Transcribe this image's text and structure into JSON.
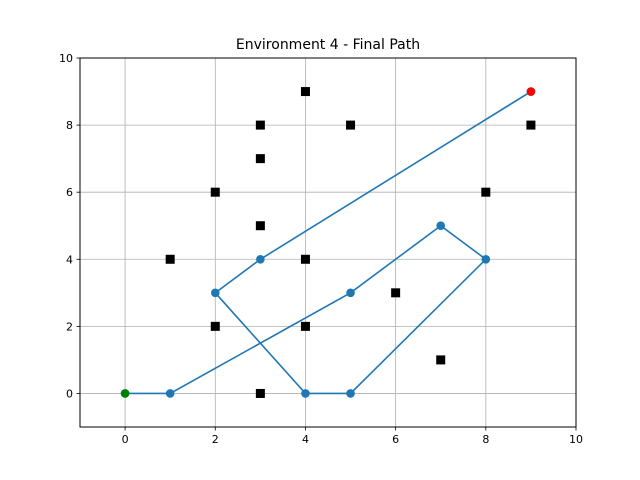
{
  "chart_data": {
    "type": "scatter",
    "title": "Environment 4 - Final Path",
    "xlabel": "",
    "ylabel": "",
    "xlim": [
      -1,
      10
    ],
    "ylim": [
      -1,
      10
    ],
    "x_ticks": [
      0,
      2,
      4,
      6,
      8,
      10
    ],
    "y_ticks": [
      0,
      2,
      4,
      6,
      8,
      10
    ],
    "grid": true,
    "path": {
      "color": "#1f77b4",
      "points": [
        [
          0,
          0
        ],
        [
          1,
          0
        ],
        [
          5,
          3
        ],
        [
          7,
          5
        ],
        [
          8,
          4
        ],
        [
          5,
          0
        ],
        [
          4,
          0
        ],
        [
          2,
          3
        ],
        [
          3,
          4
        ],
        [
          9,
          9
        ]
      ]
    },
    "obstacles": {
      "color": "#000000",
      "marker": "square",
      "points": [
        [
          1,
          4
        ],
        [
          2,
          6
        ],
        [
          2,
          2
        ],
        [
          3,
          8
        ],
        [
          3,
          7
        ],
        [
          3,
          5
        ],
        [
          3,
          0
        ],
        [
          4,
          9
        ],
        [
          4,
          4
        ],
        [
          4,
          2
        ],
        [
          5,
          8
        ],
        [
          6,
          3
        ],
        [
          7,
          1
        ],
        [
          8,
          6
        ],
        [
          9,
          8
        ]
      ]
    },
    "start": {
      "x": 0,
      "y": 0,
      "color": "#008000"
    },
    "goal": {
      "x": 9,
      "y": 9,
      "color": "#ff0000"
    }
  }
}
